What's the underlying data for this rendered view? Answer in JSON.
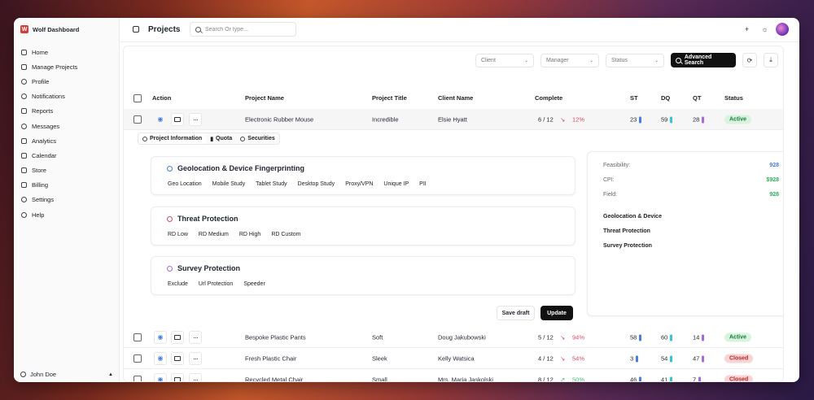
{
  "app": {
    "brand": "Wolf Dashboard",
    "brand_letter": "W"
  },
  "sidebar": {
    "items": [
      {
        "label": "Home",
        "icon": "home-icon"
      },
      {
        "label": "Manage Projects",
        "icon": "folder-icon"
      },
      {
        "label": "Profile",
        "icon": "user-icon"
      },
      {
        "label": "Notifications",
        "icon": "bell-icon"
      },
      {
        "label": "Reports",
        "icon": "report-icon"
      },
      {
        "label": "Messages",
        "icon": "message-icon"
      },
      {
        "label": "Analytics",
        "icon": "analytics-icon"
      },
      {
        "label": "Calendar",
        "icon": "calendar-icon"
      },
      {
        "label": "Store",
        "icon": "store-icon"
      },
      {
        "label": "Billing",
        "icon": "billing-icon"
      },
      {
        "label": "Settings",
        "icon": "gear-icon"
      },
      {
        "label": "Help",
        "icon": "help-icon"
      }
    ],
    "user": "John Doe"
  },
  "header": {
    "title": "Projects",
    "search_placeholder": "Search Or type..."
  },
  "filters": {
    "client": "Client",
    "manager": "Manager",
    "status": "Status",
    "advanced": "Advanced Search"
  },
  "table": {
    "headers": {
      "action": "Action",
      "project_name": "Project Name",
      "project_title": "Project Title",
      "client_name": "Client Name",
      "complete": "Complete",
      "st": "ST",
      "dq": "DQ",
      "qt": "QT",
      "status": "Status"
    },
    "rows": [
      {
        "project_name": "Electronic Rubber Mouse",
        "project_title": "Incredible",
        "client_name": "Elsie Hyatt",
        "complete": "6 / 12",
        "trend": "12%",
        "trend_dir": "down",
        "st": "23",
        "dq": "59",
        "qt": "28",
        "status": "Active"
      },
      {
        "project_name": "Bespoke Plastic Pants",
        "project_title": "Soft",
        "client_name": "Doug Jakubowski",
        "complete": "5 / 12",
        "trend": "94%",
        "trend_dir": "down",
        "st": "58",
        "dq": "60",
        "qt": "14",
        "status": "Active"
      },
      {
        "project_name": "Fresh Plastic Chair",
        "project_title": "Sleek",
        "client_name": "Kelly Watsica",
        "complete": "4 / 12",
        "trend": "54%",
        "trend_dir": "down",
        "st": "3",
        "dq": "54",
        "qt": "47",
        "status": "Closed"
      },
      {
        "project_name": "Recycled Metal Chair",
        "project_title": "Small",
        "client_name": "Mrs. Maria Jaskolski",
        "complete": "8 / 12",
        "trend": "50%",
        "trend_dir": "up",
        "st": "46",
        "dq": "41",
        "qt": "7",
        "status": "Closed"
      }
    ]
  },
  "expanded": {
    "tabs": [
      "Project Information",
      "Quota",
      "Securities"
    ],
    "sections": [
      {
        "title": "Geolocation & Device Fingerprinting",
        "options": [
          "Geo Location",
          "Mobile Study",
          "Tablet Study",
          "Desktop Study",
          "Proxy/VPN",
          "Unique IP",
          "PII"
        ]
      },
      {
        "title": "Threat Protection",
        "options": [
          "RD Low",
          "RD Medium",
          "RD High",
          "RD Custom"
        ]
      },
      {
        "title": "Survey Protection",
        "options": [
          "Exclude",
          "Url Protection",
          "Speeder"
        ]
      }
    ],
    "summary": {
      "feasibility_label": "Feasibility:",
      "feasibility": "928",
      "cpi_label": "CPI:",
      "cpi": "$928",
      "field_label": "Field:",
      "field": "928",
      "h1": "Geolocation & Device",
      "h2": "Threat Protection",
      "h3": "Survey Protection"
    },
    "save_draft": "Save draft",
    "update": "Update"
  },
  "colors": {
    "accent": "#111111",
    "st_bar": "#4a7de0",
    "dq_bar": "#37c6d8",
    "qt_bar": "#a56ae0",
    "down": "#d94b6a",
    "up": "#47c07a"
  }
}
